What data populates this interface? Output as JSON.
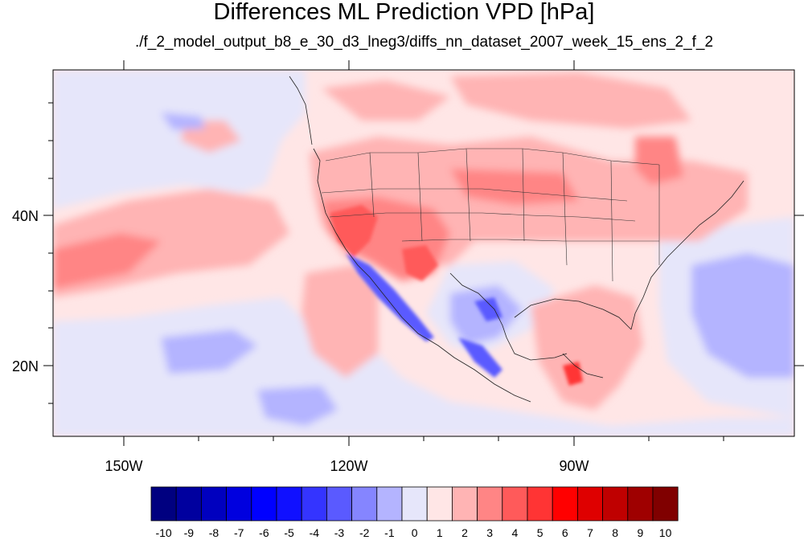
{
  "title": "Differences ML Prediction VPD [hPa]",
  "subtitle": "./f_2_model_output_b8_e_30_d3_lneg3/diffs_nn_dataset_2007_week_15_ens_2_f_2",
  "axes": {
    "lon_labels": [
      "150W",
      "120W",
      "90W"
    ],
    "lat_labels": [
      "40N",
      "20N"
    ]
  },
  "colorbar": {
    "labels": [
      "-10",
      "-9",
      "-8",
      "-7",
      "-6",
      "-5",
      "-4",
      "-3",
      "-2",
      "-1",
      "0",
      "1",
      "2",
      "3",
      "4",
      "5",
      "6",
      "7",
      "8",
      "9",
      "10"
    ],
    "colors": [
      "#000080",
      "#00009f",
      "#0000bf",
      "#0000df",
      "#0000ff",
      "#1010ff",
      "#3434ff",
      "#5a5aff",
      "#8585ff",
      "#b4b4ff",
      "#e6e6fa",
      "#ffe6e6",
      "#ffb4b4",
      "#ff8585",
      "#ff5a5a",
      "#ff3434",
      "#ff0000",
      "#df0000",
      "#bf0000",
      "#9f0000",
      "#800000"
    ]
  }
}
